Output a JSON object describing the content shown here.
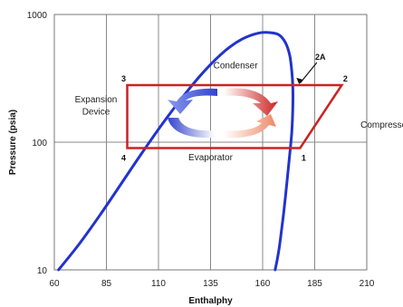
{
  "chart_data": {
    "type": "line",
    "title": "",
    "xlabel": "Enthalphy",
    "ylabel": "Pressure (psia)",
    "xlim": [
      60,
      210
    ],
    "ylim": [
      10,
      1000
    ],
    "y_scale": "log",
    "grid": true,
    "x_ticks": [
      60,
      85,
      110,
      135,
      160,
      185,
      210
    ],
    "x_tick_labels": [
      "60",
      "85",
      "110",
      "135",
      "160",
      "185",
      "210"
    ],
    "y_ticks": [
      10,
      100,
      1000
    ],
    "y_tick_labels": [
      "10",
      "100",
      "1000"
    ],
    "saturation_dome": {
      "x": [
        62,
        72,
        82,
        92,
        102,
        112,
        122,
        132,
        142,
        150,
        158,
        164,
        168,
        171,
        173,
        174,
        174.5,
        174.5,
        174,
        173,
        172,
        171,
        170,
        169,
        168,
        167,
        166
      ],
      "y": [
        10,
        16,
        27,
        47,
        82,
        140,
        230,
        360,
        520,
        640,
        715,
        720,
        690,
        600,
        480,
        360,
        270,
        190,
        120,
        80,
        55,
        38,
        27,
        20,
        15,
        12,
        10
      ],
      "color": "#2233cc"
    },
    "cycle": {
      "points": [
        {
          "label": "1",
          "x": 178,
          "y": 90
        },
        {
          "label": "2",
          "x": 198,
          "y": 280
        },
        {
          "label": "3",
          "x": 95,
          "y": 280
        },
        {
          "label": "4",
          "x": 95,
          "y": 90
        }
      ],
      "color": "#cc2222"
    },
    "annotations": [
      {
        "text": "2A",
        "x": 177,
        "y": 280
      },
      {
        "text": "Condenser",
        "x": 147,
        "y": 380
      },
      {
        "text": "Evaporator",
        "x": 135,
        "y": 72
      },
      {
        "text": "Expansion",
        "x": 80,
        "y": 205
      },
      {
        "text": "Device",
        "x": 80,
        "y": 165
      },
      {
        "text": "Compressor",
        "x": 207,
        "y": 130
      }
    ],
    "flow_arrows": {
      "colors": [
        "#3344cc",
        "#8899ee",
        "#cc2222",
        "#ee8866"
      ]
    }
  }
}
